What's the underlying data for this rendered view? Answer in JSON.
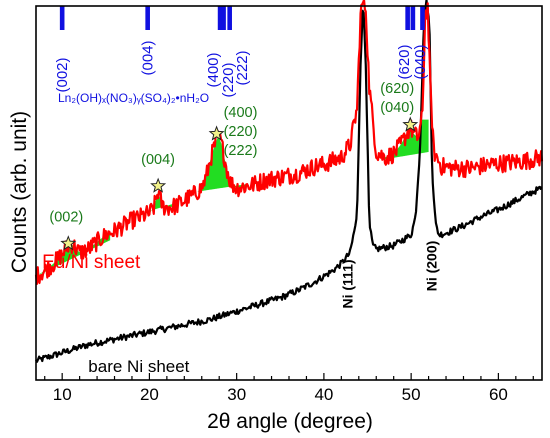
{
  "chart_data": {
    "type": "line",
    "xlabel": "2θ angle (degree)",
    "ylabel": "Counts (arb. unit)",
    "xlim": [
      7,
      65
    ],
    "ylim": [
      0,
      1
    ],
    "x_ticks": [
      10,
      20,
      30,
      40,
      50,
      60
    ],
    "grid": false,
    "y_tick_labels": false,
    "series": [
      {
        "name": "Eu/Ni sheet",
        "color": "#ff0000",
        "x": [
          7,
          8,
          9,
          10,
          10.5,
          11,
          11.5,
          12,
          13,
          14,
          15,
          16,
          17,
          18,
          19,
          20,
          20.5,
          21,
          21.5,
          22,
          23,
          24,
          25,
          26,
          26.5,
          27,
          27.5,
          27.9,
          28.3,
          28.8,
          29.3,
          30,
          31,
          32,
          33,
          34,
          35,
          36,
          37,
          38,
          39,
          40,
          41,
          42,
          43,
          43.8,
          44.2,
          44.5,
          44.8,
          45.2,
          46,
          47,
          48,
          48.8,
          49.5,
          49.9,
          50.3,
          50.8,
          51.3,
          51.6,
          51.9,
          52.2,
          52.6,
          53.5,
          55,
          57,
          59,
          61,
          63,
          65
        ],
        "y": [
          0.255,
          0.27,
          0.29,
          0.315,
          0.335,
          0.345,
          0.335,
          0.32,
          0.33,
          0.35,
          0.37,
          0.38,
          0.395,
          0.41,
          0.42,
          0.43,
          0.445,
          0.49,
          0.45,
          0.445,
          0.45,
          0.465,
          0.48,
          0.5,
          0.53,
          0.58,
          0.62,
          0.645,
          0.62,
          0.56,
          0.515,
          0.5,
          0.505,
          0.51,
          0.52,
          0.525,
          0.53,
          0.535,
          0.54,
          0.55,
          0.56,
          0.565,
          0.575,
          0.585,
          0.62,
          0.72,
          0.98,
          1.02,
          1.0,
          0.78,
          0.6,
          0.585,
          0.595,
          0.62,
          0.65,
          0.67,
          0.65,
          0.64,
          0.7,
          0.98,
          1.0,
          0.78,
          0.6,
          0.56,
          0.555,
          0.555,
          0.565,
          0.57,
          0.575,
          0.585
        ]
      },
      {
        "name": "bare Ni sheet",
        "color": "#000000",
        "x": [
          7,
          9,
          11,
          13,
          15,
          17,
          19,
          21,
          23,
          25,
          27,
          29,
          31,
          33,
          35,
          37,
          39,
          41,
          42,
          43,
          43.8,
          44.2,
          44.5,
          44.8,
          45.2,
          45.6,
          46,
          47,
          48,
          49,
          50,
          50.5,
          51,
          51.5,
          51.8,
          52.1,
          52.4,
          52.8,
          53.2,
          54,
          56,
          58,
          60,
          62,
          64,
          65
        ],
        "y": [
          0.02,
          0.035,
          0.05,
          0.065,
          0.075,
          0.085,
          0.095,
          0.105,
          0.115,
          0.125,
          0.135,
          0.15,
          0.165,
          0.18,
          0.195,
          0.215,
          0.24,
          0.27,
          0.29,
          0.32,
          0.42,
          0.85,
          1.02,
          0.85,
          0.4,
          0.34,
          0.33,
          0.335,
          0.34,
          0.355,
          0.37,
          0.42,
          0.6,
          0.98,
          1.02,
          0.95,
          0.55,
          0.4,
          0.37,
          0.375,
          0.395,
          0.42,
          0.44,
          0.465,
          0.49,
          0.5
        ]
      }
    ],
    "fill_color": "#22dd22",
    "reference_color": "#1010e0",
    "reference_lines": [
      {
        "x": 10,
        "label": "(002)"
      },
      {
        "x": 19.8,
        "label": "(004)"
      },
      {
        "x": 28.1,
        "label": "(400)"
      },
      {
        "x": 28.5,
        "label": "(220)"
      },
      {
        "x": 29.2,
        "label": "(222)"
      },
      {
        "x": 49.6,
        "label": "(620)"
      },
      {
        "x": 50.2,
        "label": "(040)"
      },
      {
        "x": 51.3,
        "label": ""
      }
    ],
    "compound_label": "Ln₂(OH)ₓ(NO₃)ᵧ(SO₄)₂•nH₂O",
    "star_peaks": [
      {
        "x": 10.7,
        "y": 0.34,
        "label": [
          "(002)"
        ]
      },
      {
        "x": 21.0,
        "y": 0.5,
        "label": [
          "(004)"
        ]
      },
      {
        "x": 27.7,
        "y": 0.645,
        "label": [
          "(400)",
          "(220)",
          "(222)"
        ]
      },
      {
        "x": 49.9,
        "y": 0.67,
        "label": [
          "(620)",
          "(040)"
        ]
      }
    ],
    "star_label_color": "#1a7a1a",
    "peak_labels": [
      {
        "x": 43.3,
        "text": "Ni (111)"
      },
      {
        "x": 52.9,
        "text": "Ni (200)"
      }
    ],
    "series_labels": [
      {
        "text": "Eu/Ni sheet",
        "color": "#ff0000",
        "x": 7.7
      },
      {
        "text": "bare Ni sheet",
        "color": "#000000",
        "x": 13
      }
    ]
  }
}
